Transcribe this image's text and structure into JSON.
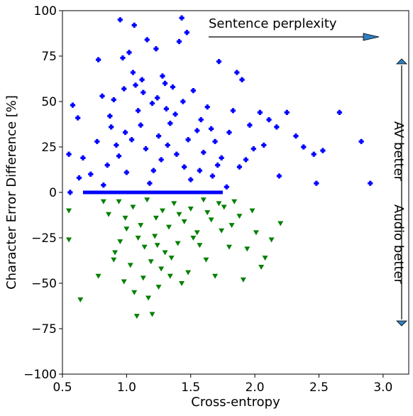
{
  "chart_data": {
    "type": "scatter",
    "xlabel": "Cross-entropy",
    "ylabel": "Character Error Difference [%]",
    "xlim": [
      0.5,
      3.2
    ],
    "ylim": [
      -100,
      100
    ],
    "x_ticks": [
      0.5,
      1.0,
      1.5,
      2.0,
      2.5,
      3.0
    ],
    "x_tick_labels": [
      "0.5",
      "1.0",
      "1.5",
      "2.0",
      "2.5",
      "3.0"
    ],
    "y_ticks": [
      100,
      75,
      50,
      25,
      0,
      -25,
      -50,
      -75,
      -100
    ],
    "y_tick_labels": [
      "100",
      "75",
      "50",
      "25",
      "0",
      "−25",
      "−50",
      "−75",
      "−100"
    ],
    "grid": false,
    "series": [
      {
        "marker": "plus",
        "color": "#0000ff",
        "points": [
          [
            0.95,
            95
          ],
          [
            1.43,
            96
          ],
          [
            1.06,
            92
          ],
          [
            1.47,
            88
          ],
          [
            1.16,
            84
          ],
          [
            1.23,
            79
          ],
          [
            1.41,
            83
          ],
          [
            0.97,
            74
          ],
          [
            1.02,
            77
          ],
          [
            0.78,
            73
          ],
          [
            1.72,
            72
          ],
          [
            1.86,
            66
          ],
          [
            1.9,
            62
          ],
          [
            1.28,
            64
          ],
          [
            1.3,
            60
          ],
          [
            1.36,
            58
          ],
          [
            1.07,
            59
          ],
          [
            1.13,
            55
          ],
          [
            0.81,
            53
          ],
          [
            0.9,
            51
          ],
          [
            1.52,
            56
          ],
          [
            1.63,
            47
          ],
          [
            2.04,
            44
          ],
          [
            2.25,
            44
          ],
          [
            2.66,
            44
          ],
          [
            2.11,
            40
          ],
          [
            1.96,
            37
          ],
          [
            2.17,
            36
          ],
          [
            1.8,
            33
          ],
          [
            2.32,
            31
          ],
          [
            1.69,
            28
          ],
          [
            1.99,
            24
          ],
          [
            2.38,
            25
          ],
          [
            2.83,
            28
          ],
          [
            2.46,
            21
          ],
          [
            2.53,
            23
          ],
          [
            2.9,
            5
          ],
          [
            2.48,
            5
          ],
          [
            2.19,
            9
          ],
          [
            1.88,
            14
          ],
          [
            1.74,
            19
          ],
          [
            1.6,
            22
          ],
          [
            1.57,
            12
          ],
          [
            1.55,
            34
          ],
          [
            1.38,
            43
          ],
          [
            1.2,
            49
          ],
          [
            1.11,
            37
          ],
          [
            1.04,
            29
          ],
          [
            0.94,
            20
          ],
          [
            0.85,
            15
          ],
          [
            0.72,
            10
          ],
          [
            0.66,
            19
          ],
          [
            0.62,
            41
          ],
          [
            0.58,
            48
          ],
          [
            0.55,
            21
          ],
          [
            0.56,
            0
          ],
          [
            0.63,
            8
          ],
          [
            0.77,
            28
          ],
          [
            0.88,
            36
          ],
          [
            1.09,
            45
          ],
          [
            1.25,
            31
          ],
          [
            1.32,
            26
          ],
          [
            1.45,
            14
          ],
          [
            1.5,
            7
          ],
          [
            1.18,
            5
          ],
          [
            1.0,
            11
          ],
          [
            0.82,
            4
          ],
          [
            1.34,
            38
          ],
          [
            1.27,
            18
          ],
          [
            1.15,
            24
          ],
          [
            0.99,
            33
          ],
          [
            0.92,
            26
          ],
          [
            1.21,
            12
          ],
          [
            1.39,
            21
          ],
          [
            1.48,
            29
          ],
          [
            1.58,
            40
          ],
          [
            1.67,
            9
          ],
          [
            1.78,
            3
          ],
          [
            1.83,
            45
          ],
          [
            1.93,
            18
          ],
          [
            2.07,
            26
          ],
          [
            1.12,
            62
          ],
          [
            1.24,
            52
          ],
          [
            1.05,
            66
          ],
          [
            0.98,
            57
          ],
          [
            0.87,
            42
          ],
          [
            1.31,
            46
          ],
          [
            1.44,
            50
          ],
          [
            1.66,
            35
          ],
          [
            1.71,
            15
          ]
        ]
      },
      {
        "marker": "triangle-down",
        "color": "#008000",
        "points": [
          [
            0.55,
            -10
          ],
          [
            0.55,
            -26
          ],
          [
            0.64,
            -59
          ],
          [
            0.78,
            -46
          ],
          [
            0.9,
            -37
          ],
          [
            0.98,
            -49
          ],
          [
            1.08,
            -68
          ],
          [
            1.2,
            -67
          ],
          [
            1.17,
            -58
          ],
          [
            1.25,
            -52
          ],
          [
            1.34,
            -46
          ],
          [
            1.43,
            -50
          ],
          [
            1.48,
            -44
          ],
          [
            1.62,
            -37
          ],
          [
            1.69,
            -46
          ],
          [
            1.8,
            -30
          ],
          [
            1.91,
            -48
          ],
          [
            2.05,
            -41
          ],
          [
            2.13,
            -26
          ],
          [
            2.08,
            -36
          ],
          [
            2.2,
            -17
          ],
          [
            2.01,
            -22
          ],
          [
            1.88,
            -13
          ],
          [
            1.76,
            -8
          ],
          [
            1.66,
            -15
          ],
          [
            1.55,
            -22
          ],
          [
            1.4,
            -28
          ],
          [
            1.3,
            -33
          ],
          [
            1.22,
            -24
          ],
          [
            1.14,
            -30
          ],
          [
            1.03,
            -40
          ],
          [
            0.95,
            -27
          ],
          [
            0.86,
            -12
          ],
          [
            0.82,
            -5
          ],
          [
            0.94,
            -5
          ],
          [
            1.05,
            -8
          ],
          [
            1.16,
            -4
          ],
          [
            1.28,
            -10
          ],
          [
            1.37,
            -6
          ],
          [
            1.5,
            -9
          ],
          [
            1.6,
            -4
          ],
          [
            1.72,
            -6
          ],
          [
            1.84,
            -5
          ],
          [
            1.98,
            -10
          ],
          [
            1.11,
            -18
          ],
          [
            1.23,
            -14
          ],
          [
            1.33,
            -19
          ],
          [
            1.45,
            -16
          ],
          [
            1.57,
            -29
          ],
          [
            1.0,
            -20
          ],
          [
            0.91,
            -33
          ],
          [
            1.19,
            -38
          ],
          [
            1.27,
            -42
          ],
          [
            1.06,
            -55
          ],
          [
            1.35,
            -36
          ],
          [
            1.52,
            -25
          ],
          [
            1.74,
            -21
          ],
          [
            1.94,
            -31
          ],
          [
            0.99,
            -14
          ],
          [
            1.09,
            -25
          ],
          [
            1.41,
            -12
          ],
          [
            1.63,
            -11
          ],
          [
            1.82,
            -18
          ],
          [
            1.24,
            -29
          ],
          [
            1.13,
            -47
          ]
        ]
      }
    ],
    "annotations": {
      "perplexity_label": "Sentence perplexity",
      "av_better": "AV better",
      "audio_better": "Audio better"
    }
  }
}
